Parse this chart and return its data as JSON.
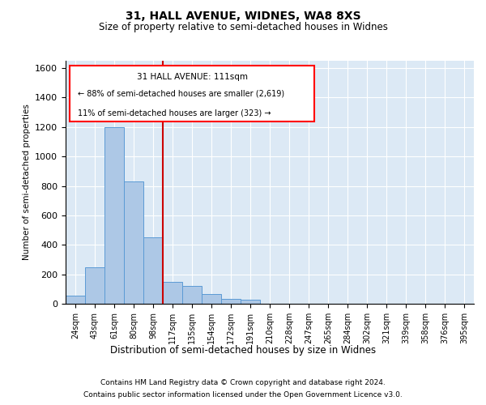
{
  "title1": "31, HALL AVENUE, WIDNES, WA8 8XS",
  "title2": "Size of property relative to semi-detached houses in Widnes",
  "xlabel": "Distribution of semi-detached houses by size in Widnes",
  "ylabel": "Number of semi-detached properties",
  "footer1": "Contains HM Land Registry data © Crown copyright and database right 2024.",
  "footer2": "Contains public sector information licensed under the Open Government Licence v3.0.",
  "property_label": "31 HALL AVENUE: 111sqm",
  "smaller_pct": "88% of semi-detached houses are smaller (2,619)",
  "larger_pct": "11% of semi-detached houses are larger (323)",
  "bar_color": "#adc8e6",
  "bar_edge_color": "#5b9bd5",
  "vline_color": "#cc0000",
  "categories": [
    "24sqm",
    "43sqm",
    "61sqm",
    "80sqm",
    "98sqm",
    "117sqm",
    "135sqm",
    "154sqm",
    "172sqm",
    "191sqm",
    "210sqm",
    "228sqm",
    "247sqm",
    "265sqm",
    "284sqm",
    "302sqm",
    "321sqm",
    "339sqm",
    "358sqm",
    "376sqm",
    "395sqm"
  ],
  "values": [
    55,
    250,
    1200,
    830,
    450,
    150,
    120,
    65,
    35,
    25,
    0,
    0,
    0,
    0,
    0,
    0,
    0,
    0,
    0,
    0,
    0
  ],
  "vline_x": 5.0,
  "ylim": [
    0,
    1650
  ],
  "yticks": [
    0,
    200,
    400,
    600,
    800,
    1000,
    1200,
    1400,
    1600
  ],
  "background_color": "#dce9f5",
  "grid_color": "#ffffff",
  "fig_width": 6.0,
  "fig_height": 5.0
}
